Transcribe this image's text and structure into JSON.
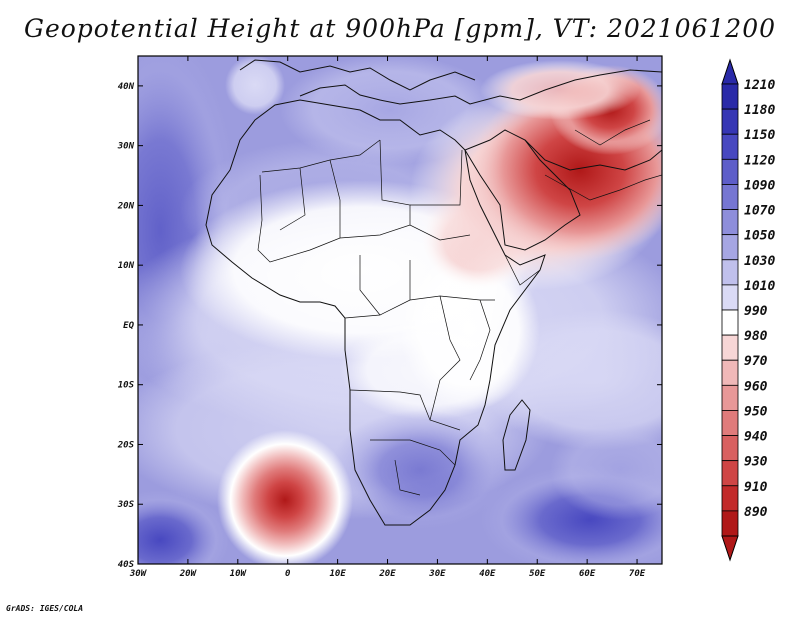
{
  "title": "Geopotential Height at 900hPa [gpm], VT: 2021061200",
  "footer": "GrADS: IGES/COLA",
  "map": {
    "lon_range": [
      -30,
      75
    ],
    "lat_range": [
      -40,
      45
    ],
    "lon_ticks": [
      "30W",
      "20W",
      "10W",
      "0",
      "10E",
      "20E",
      "30E",
      "40E",
      "50E",
      "60E",
      "70E"
    ],
    "lat_ticks": [
      "40N",
      "30N",
      "20N",
      "10N",
      "EQ",
      "10S",
      "20S",
      "30S",
      "40S"
    ]
  },
  "colorbar": {
    "labels": [
      "1210",
      "1180",
      "1150",
      "1120",
      "1090",
      "1070",
      "1050",
      "1030",
      "1010",
      "990",
      "980",
      "970",
      "960",
      "950",
      "940",
      "930",
      "910",
      "890"
    ],
    "colors": [
      "#2a2aa8",
      "#3636b4",
      "#4848c0",
      "#5e5ec9",
      "#7676d2",
      "#8e8edb",
      "#a6a6e3",
      "#c0c0ec",
      "#dadaf5",
      "#ffffff",
      "#f7d6d6",
      "#f0b8b8",
      "#e89898",
      "#e07b7b",
      "#d86060",
      "#cf4545",
      "#c22a2a",
      "#b01818"
    ]
  }
}
